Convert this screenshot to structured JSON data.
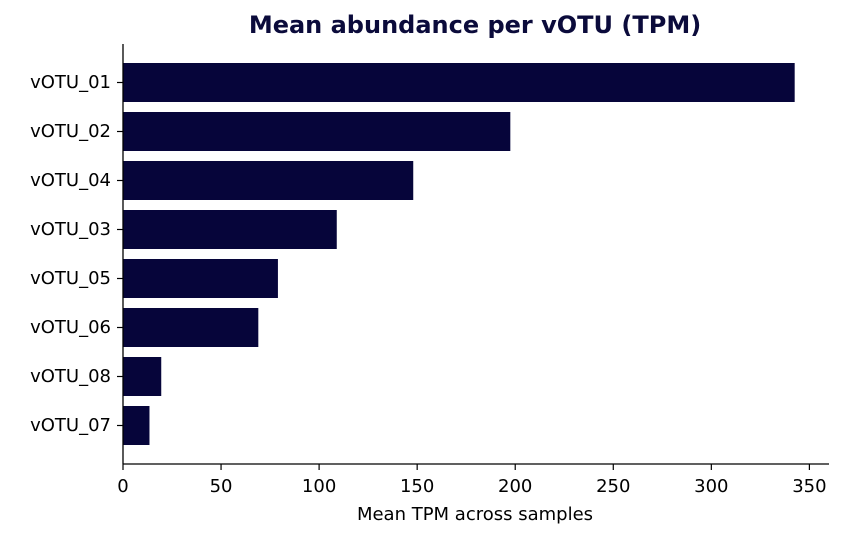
{
  "chart_data": {
    "type": "bar",
    "orientation": "horizontal",
    "title": "Mean abundance per vOTU (TPM)",
    "xlabel": "Mean TPM across samples",
    "ylabel": "",
    "categories": [
      "vOTU_01",
      "vOTU_02",
      "vOTU_04",
      "vOTU_03",
      "vOTU_05",
      "vOTU_06",
      "vOTU_08",
      "vOTU_07"
    ],
    "values": [
      342.5,
      197.5,
      148,
      109,
      79,
      69,
      19.5,
      13.5
    ],
    "xlim": [
      0,
      360
    ],
    "xticks": [
      0,
      50,
      100,
      150,
      200,
      250,
      300,
      350
    ],
    "grid": false,
    "legend": "none",
    "bar_color": "#06053a",
    "title_color": "#0b0b3b"
  }
}
